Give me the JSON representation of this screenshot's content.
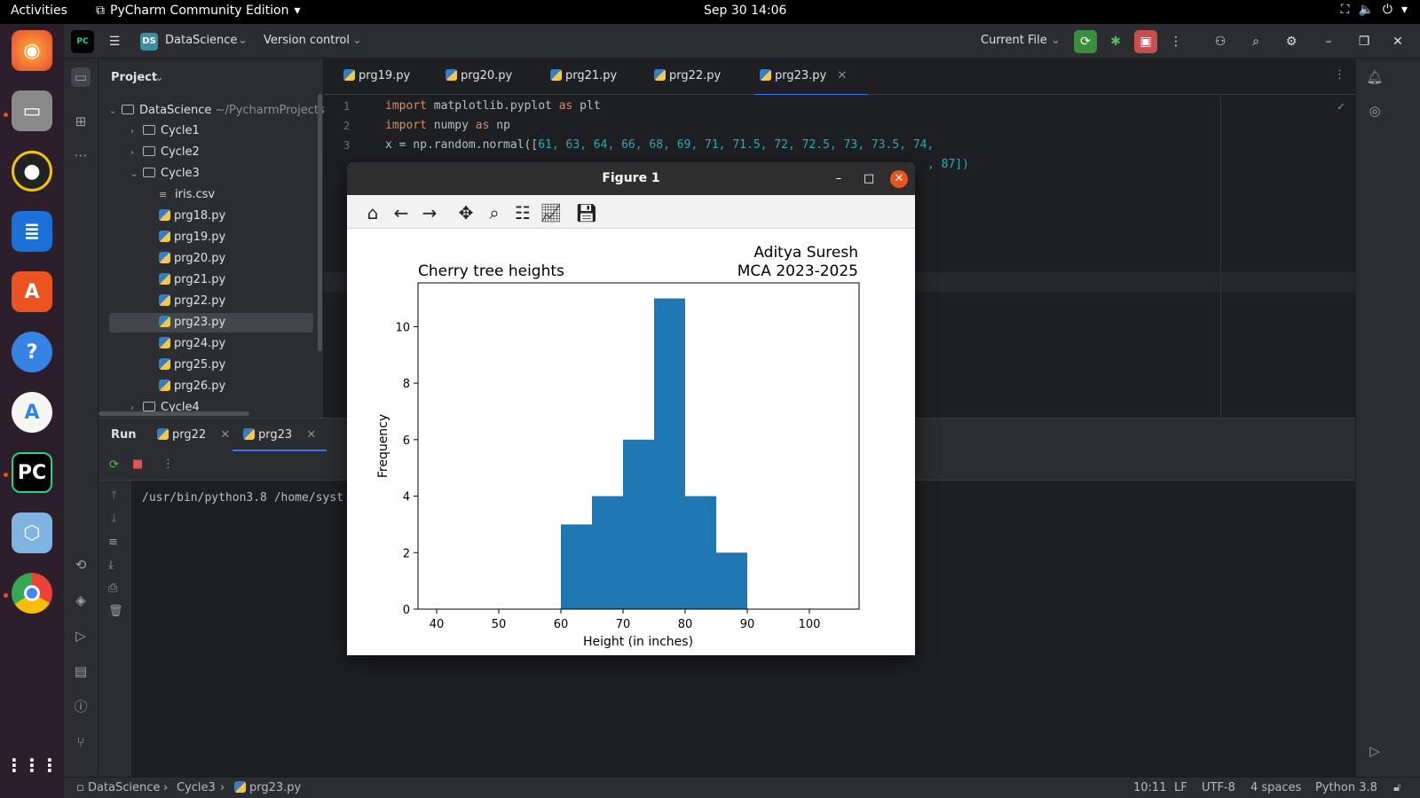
{
  "topbar": {
    "activities": "Activities",
    "app_name": "PyCharm Community Edition",
    "clock": "Sep 30  14:06"
  },
  "header": {
    "project_badge": "DS",
    "project_name": "DataScience",
    "vcs": "Version control",
    "run_config": "Current File"
  },
  "project": {
    "title": "Project",
    "root": "DataScience",
    "root_path": "~/PycharmProjects/",
    "items": [
      {
        "label": "Cycle1",
        "type": "folder"
      },
      {
        "label": "Cycle2",
        "type": "folder"
      },
      {
        "label": "Cycle3",
        "type": "folder-open"
      },
      {
        "label": "iris.csv",
        "type": "csv"
      },
      {
        "label": "prg18.py",
        "type": "py"
      },
      {
        "label": "prg19.py",
        "type": "py"
      },
      {
        "label": "prg20.py",
        "type": "py"
      },
      {
        "label": "prg21.py",
        "type": "py"
      },
      {
        "label": "prg22.py",
        "type": "py"
      },
      {
        "label": "prg23.py",
        "type": "py"
      },
      {
        "label": "prg24.py",
        "type": "py"
      },
      {
        "label": "prg25.py",
        "type": "py"
      },
      {
        "label": "prg26.py",
        "type": "py"
      },
      {
        "label": "Cycle4",
        "type": "folder"
      }
    ]
  },
  "editor": {
    "tabs": [
      "prg19.py",
      "prg20.py",
      "prg21.py",
      "prg22.py",
      "prg23.py"
    ],
    "line_numbers": [
      "1",
      "2",
      "3"
    ],
    "code": {
      "l1_kw1": "import",
      "l1_mid": " matplotlib.pyplot ",
      "l1_kw2": "as",
      "l1_end": " plt",
      "l2_kw1": "import",
      "l2_mid": " numpy ",
      "l2_kw2": "as",
      "l2_end": " np",
      "l3_start": "x = np.random.normal([",
      "l3_nums": "61, 63, 64, 66, 68, 69, 71, 71.5, 72, 72.5, 73, 73.5, 74,",
      "l4_tail": ", 87])"
    }
  },
  "run": {
    "title": "Run",
    "tabs": [
      "prg22",
      "prg23"
    ],
    "console": "/usr/bin/python3.8 /home/syst"
  },
  "status": {
    "crumbs": [
      "DataScience",
      "Cycle3",
      "prg23.py"
    ],
    "position": "10:11",
    "line_sep": "LF",
    "encoding": "UTF-8",
    "indent": "4 spaces",
    "interpreter": "Python 3.8"
  },
  "figure": {
    "window_title": "Figure 1",
    "chart_data": {
      "type": "bar",
      "title": "Cherry tree heights",
      "title_right": [
        "Aditya Suresh",
        "MCA 2023-2025"
      ],
      "xlabel": "Height (in inches)",
      "ylabel": "Frequency",
      "xlim": [
        37,
        108
      ],
      "ylim": [
        0,
        11.55
      ],
      "x_ticks": [
        "40",
        "50",
        "60",
        "70",
        "80",
        "90",
        "100"
      ],
      "y_ticks": [
        "0",
        "2",
        "4",
        "6",
        "8",
        "10"
      ],
      "bins": [
        {
          "x0": 60,
          "x1": 65,
          "count": 3
        },
        {
          "x0": 65,
          "x1": 70,
          "count": 4
        },
        {
          "x0": 70,
          "x1": 75,
          "count": 6
        },
        {
          "x0": 75,
          "x1": 80,
          "count": 11
        },
        {
          "x0": 80,
          "x1": 85,
          "count": 4
        },
        {
          "x0": 85,
          "x1": 90,
          "count": 2
        }
      ],
      "bar_color": "#1f77b4"
    }
  }
}
